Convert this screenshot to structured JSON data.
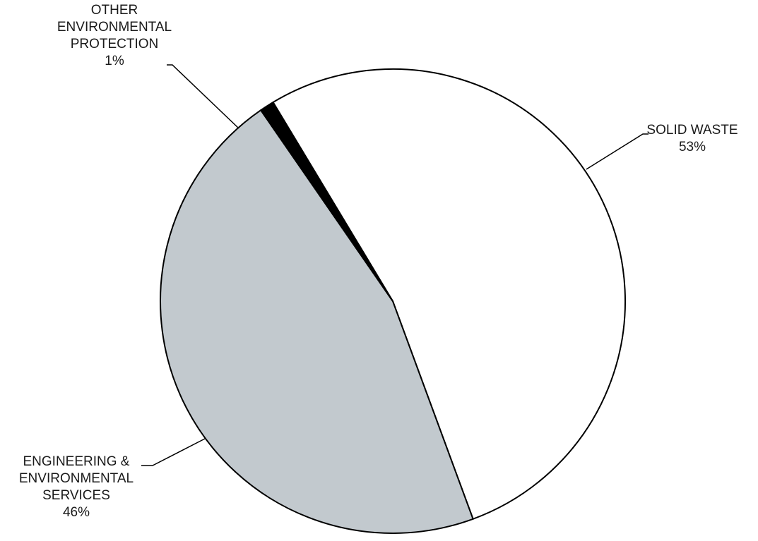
{
  "chart_data": {
    "type": "pie",
    "slices": [
      {
        "label_lines": [
          "SOLID WASTE"
        ],
        "value": 53,
        "value_label": "53%",
        "color": "#ffffff"
      },
      {
        "label_lines": [
          "ENGINEERING &",
          "ENVIRONMENTAL",
          "SERVICES"
        ],
        "value": 46,
        "value_label": "46%",
        "color": "#c2c9ce"
      },
      {
        "label_lines": [
          "OTHER",
          "ENVIRONMENTAL",
          "PROTECTION"
        ],
        "value": 1,
        "value_label": "1%",
        "color": "#000000"
      }
    ],
    "edge_color": "#000000"
  }
}
